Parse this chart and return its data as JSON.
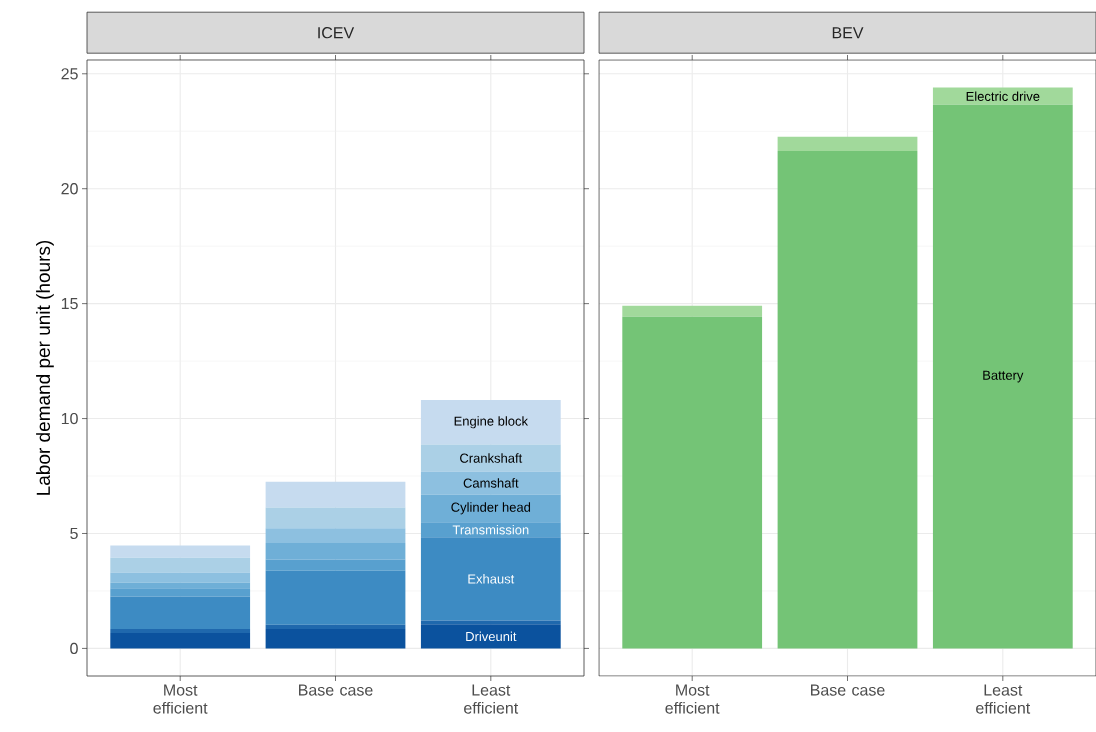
{
  "chart_data": [
    {
      "type": "bar",
      "title": "ICEV",
      "ylabel": "Labor demand per unit (hours)",
      "categories": [
        "Most efficient",
        "Base case",
        "Least efficient"
      ],
      "stacked": true,
      "ylim": [
        -1.2,
        25.6
      ],
      "yticks": [
        0,
        5,
        10,
        15,
        20,
        25
      ],
      "grid": true,
      "legend": false,
      "series": [
        {
          "name": "Driveunit",
          "color": "#0b529e",
          "values": [
            0.67,
            0.84,
            1.05
          ]
        },
        {
          "color": "#1f68ad",
          "values": [
            0.17,
            0.19,
            0.17
          ]
        },
        {
          "name": "Exhaust",
          "color": "#3d8bc3",
          "values": [
            1.42,
            2.35,
            3.62
          ]
        },
        {
          "name": "Transmission",
          "color": "#58a0cf",
          "values": [
            0.36,
            0.49,
            0.65
          ]
        },
        {
          "name": "Cylinder head",
          "color": "#6fafd7",
          "values": [
            0.25,
            0.72,
            1.21
          ]
        },
        {
          "name": "Camshaft",
          "color": "#8dc0e0",
          "values": [
            0.43,
            0.64,
            1.0
          ]
        },
        {
          "name": "Crankshaft",
          "color": "#abd0e6",
          "values": [
            0.64,
            0.9,
            1.17
          ]
        },
        {
          "name": "Engine block",
          "color": "#c6dbef",
          "values": [
            0.54,
            1.12,
            1.94
          ]
        }
      ]
    },
    {
      "type": "bar",
      "title": "BEV",
      "categories": [
        "Most efficient",
        "Base case",
        "Least efficient"
      ],
      "stacked": true,
      "ylim": [
        -1.2,
        25.6
      ],
      "yticks": [
        0,
        5,
        10,
        15,
        20,
        25
      ],
      "grid": true,
      "legend": false,
      "tick_labels": "x",
      "series": [
        {
          "name": "Battery",
          "color": "#74c476",
          "values": [
            14.43,
            21.64,
            23.65
          ]
        },
        {
          "name": "Electric drive",
          "color": "#a1d99b",
          "values": [
            0.48,
            0.62,
            0.75
          ]
        }
      ]
    }
  ]
}
